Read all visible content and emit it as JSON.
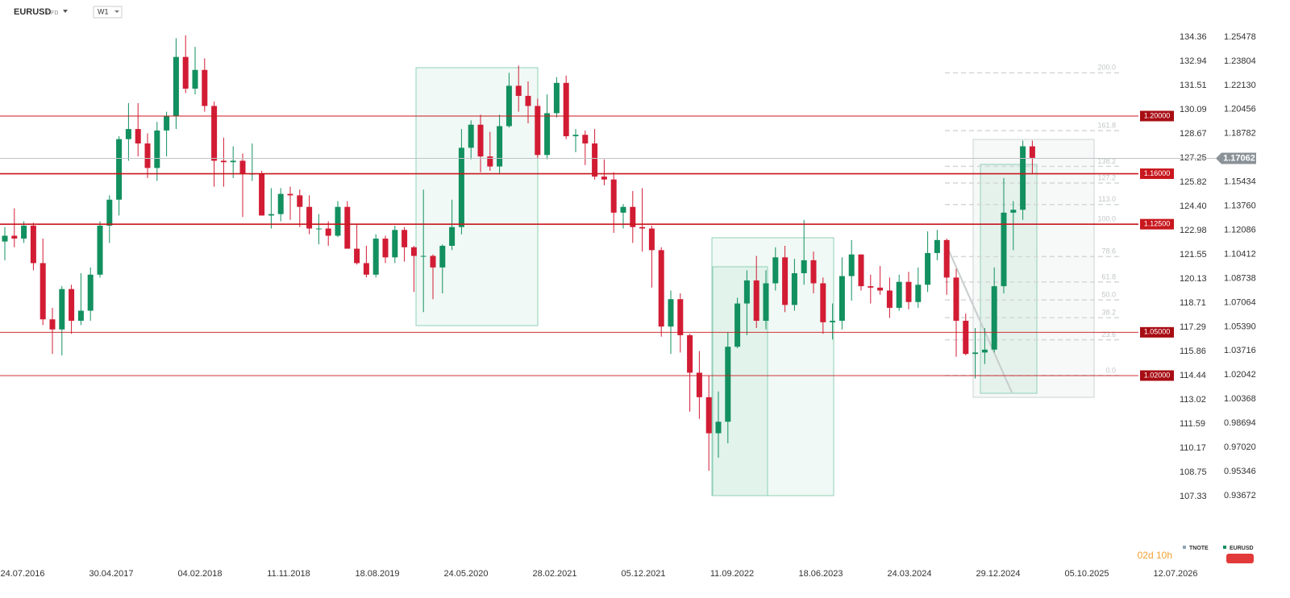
{
  "header": {
    "symbol": "EURUSD",
    "kind": "CFD",
    "interval": "W1"
  },
  "chart_data": {
    "type": "candlestick",
    "up_color": "#12905f",
    "down_color": "#d21c34",
    "level_color": "#c8171d",
    "level_label_color": "#a80d14",
    "current_color": "#8a9297",
    "ylim": [
      0.88921,
      1.28049
    ],
    "yticks": [
      1.25478,
      1.23804,
      {
        "value": 1.2213,
        "label": "1.22130"
      },
      1.20456,
      1.18782,
      1.15434,
      {
        "value": 1.1376,
        "label": "1.13760"
      },
      1.12086,
      1.10412,
      1.08738,
      1.07064,
      {
        "value": 1.0539,
        "label": "1.05390"
      },
      1.03716,
      1.02042,
      1.00368,
      0.98694,
      {
        "value": 0.9702,
        "label": "0.97020"
      },
      0.95346,
      0.93672
    ],
    "y2lim": [
      103.35,
      136.54
    ],
    "y2ticks": [
      134.36,
      132.94,
      131.51,
      130.09,
      128.67,
      127.25,
      125.82,
      {
        "value": 124.4,
        "label": "124.40"
      },
      122.98,
      121.55,
      120.13,
      118.71,
      117.29,
      115.86,
      114.44,
      113.02,
      111.59,
      110.17,
      108.75,
      107.33
    ],
    "x_labels": [
      "24.07.2016",
      "30.04.2017",
      "04.02.2018",
      "11.11.2018",
      "18.08.2019",
      "24.05.2020",
      "28.02.2021",
      "05.12.2021",
      "11.09.2022",
      "18.06.2023",
      "24.03.2024",
      "29.12.2024",
      "05.10.2025",
      "12.07.2026"
    ],
    "current_price": 1.17062,
    "levels": [
      {
        "value": 1.2,
        "label": "1.20000"
      },
      {
        "value": 1.16,
        "label": "1.16000"
      },
      {
        "value": 1.125,
        "label": "1.12500"
      },
      {
        "value": 1.05,
        "label": "1.05000"
      },
      {
        "value": 1.02,
        "label": "1.02000"
      }
    ],
    "fib_levels": [
      {
        "value": 200,
        "label": "200.0"
      },
      161.8,
      138.2,
      127.2,
      {
        "value": 113,
        "label": "113.0"
      },
      {
        "value": 100,
        "label": "100.0"
      },
      78.6,
      61.8,
      {
        "value": 50,
        "label": "50.0"
      },
      38.2,
      23.6,
      {
        "value": 0,
        "label": "0.0"
      }
    ],
    "legend": [
      {
        "name": "TNOTE",
        "color": "#8fa3b8"
      },
      {
        "name": "EURUSD",
        "color": "#12905f"
      }
    ],
    "timer": "02d 10h",
    "timer_color": "#f0a030",
    "candles": [
      [
        1.113,
        1.123,
        1.1,
        1.117
      ],
      [
        1.117,
        1.136,
        1.109,
        1.115
      ],
      [
        1.115,
        1.127,
        1.112,
        1.124
      ],
      [
        1.124,
        1.126,
        1.093,
        1.098
      ],
      [
        1.098,
        1.115,
        1.055,
        1.059
      ],
      [
        1.059,
        1.067,
        1.035,
        1.052
      ],
      [
        1.052,
        1.082,
        1.034,
        1.08
      ],
      [
        1.08,
        1.083,
        1.049,
        1.058
      ],
      [
        1.058,
        1.091,
        1.055,
        1.065
      ],
      [
        1.065,
        1.095,
        1.058,
        1.09
      ],
      [
        1.09,
        1.127,
        1.088,
        1.124
      ],
      [
        1.124,
        1.145,
        1.112,
        1.142
      ],
      [
        1.142,
        1.186,
        1.131,
        1.184
      ],
      [
        1.184,
        1.209,
        1.169,
        1.191
      ],
      [
        1.191,
        1.209,
        1.172,
        1.181
      ],
      [
        1.181,
        1.188,
        1.157,
        1.164
      ],
      [
        1.164,
        1.196,
        1.155,
        1.19
      ],
      [
        1.19,
        1.203,
        1.172,
        1.2
      ],
      [
        1.2,
        1.254,
        1.191,
        1.241
      ],
      [
        1.241,
        1.256,
        1.216,
        1.219
      ],
      [
        1.219,
        1.248,
        1.215,
        1.232
      ],
      [
        1.232,
        1.24,
        1.203,
        1.207
      ],
      [
        1.207,
        1.21,
        1.151,
        1.169
      ],
      [
        1.169,
        1.185,
        1.151,
        1.168
      ],
      [
        1.168,
        1.179,
        1.157,
        1.169
      ],
      [
        1.169,
        1.174,
        1.13,
        1.16
      ],
      [
        1.16,
        1.181,
        1.155,
        1.16
      ],
      [
        1.16,
        1.162,
        1.132,
        1.131
      ],
      [
        1.131,
        1.15,
        1.122,
        1.132
      ],
      [
        1.132,
        1.15,
        1.127,
        1.146
      ],
      [
        1.146,
        1.151,
        1.128,
        1.145
      ],
      [
        1.145,
        1.149,
        1.123,
        1.137
      ],
      [
        1.137,
        1.145,
        1.118,
        1.122
      ],
      [
        1.122,
        1.132,
        1.111,
        1.122
      ],
      [
        1.122,
        1.127,
        1.11,
        1.117
      ],
      [
        1.117,
        1.141,
        1.116,
        1.137
      ],
      [
        1.137,
        1.141,
        1.11,
        1.108
      ],
      [
        1.108,
        1.125,
        1.097,
        1.098
      ],
      [
        1.098,
        1.11,
        1.088,
        1.09
      ],
      [
        1.09,
        1.118,
        1.088,
        1.115
      ],
      [
        1.115,
        1.117,
        1.098,
        1.102
      ],
      [
        1.102,
        1.124,
        1.098,
        1.121
      ],
      [
        1.121,
        1.123,
        1.099,
        1.109
      ],
      [
        1.109,
        1.11,
        1.078,
        1.103
      ],
      [
        1.103,
        1.149,
        1.064,
        1.103
      ],
      [
        1.103,
        1.104,
        1.073,
        1.095
      ],
      [
        1.095,
        1.111,
        1.077,
        1.11
      ],
      [
        1.11,
        1.142,
        1.107,
        1.123
      ],
      [
        1.123,
        1.191,
        1.118,
        1.178
      ],
      [
        1.178,
        1.197,
        1.17,
        1.194
      ],
      [
        1.194,
        1.201,
        1.161,
        1.172
      ],
      [
        1.172,
        1.189,
        1.162,
        1.165
      ],
      [
        1.165,
        1.201,
        1.16,
        1.193
      ],
      [
        1.193,
        1.23,
        1.192,
        1.221
      ],
      [
        1.221,
        1.235,
        1.203,
        1.214
      ],
      [
        1.214,
        1.224,
        1.195,
        1.207
      ],
      [
        1.207,
        1.212,
        1.171,
        1.173
      ],
      [
        1.173,
        1.215,
        1.17,
        1.202
      ],
      [
        1.202,
        1.227,
        1.199,
        1.223
      ],
      [
        1.223,
        1.228,
        1.184,
        1.186
      ],
      [
        1.186,
        1.191,
        1.175,
        1.187
      ],
      [
        1.187,
        1.19,
        1.166,
        1.181
      ],
      [
        1.181,
        1.191,
        1.156,
        1.158
      ],
      [
        1.158,
        1.17,
        1.152,
        1.156
      ],
      [
        1.156,
        1.161,
        1.119,
        1.133
      ],
      [
        1.133,
        1.139,
        1.122,
        1.137
      ],
      [
        1.137,
        1.148,
        1.112,
        1.123
      ],
      [
        1.123,
        1.15,
        1.106,
        1.122
      ],
      [
        1.122,
        1.124,
        1.081,
        1.107
      ],
      [
        1.107,
        1.109,
        1.047,
        1.054
      ],
      [
        1.054,
        1.079,
        1.035,
        1.073
      ],
      [
        1.073,
        1.077,
        1.036,
        1.048
      ],
      [
        1.048,
        1.049,
        0.995,
        1.022
      ],
      [
        1.022,
        1.037,
        0.99,
        1.005
      ],
      [
        1.005,
        1.02,
        0.954,
        0.98
      ],
      [
        0.98,
        1.009,
        0.963,
        0.988
      ],
      [
        0.988,
        1.05,
        0.973,
        1.04
      ],
      [
        1.04,
        1.074,
        1.039,
        1.07
      ],
      [
        1.07,
        1.093,
        1.048,
        1.086
      ],
      [
        1.086,
        1.103,
        1.053,
        1.058
      ],
      [
        1.058,
        1.093,
        1.052,
        1.084
      ],
      [
        1.084,
        1.109,
        1.079,
        1.102
      ],
      [
        1.102,
        1.11,
        1.064,
        1.069
      ],
      [
        1.069,
        1.101,
        1.065,
        1.091
      ],
      [
        1.091,
        1.128,
        1.083,
        1.1
      ],
      [
        1.1,
        1.106,
        1.077,
        1.084
      ],
      [
        1.084,
        1.088,
        1.049,
        1.057
      ],
      [
        1.057,
        1.07,
        1.045,
        1.058
      ],
      [
        1.058,
        1.102,
        1.052,
        1.089
      ],
      [
        1.089,
        1.114,
        1.072,
        1.104
      ],
      [
        1.104,
        1.104,
        1.079,
        1.082
      ],
      [
        1.082,
        1.09,
        1.07,
        1.081
      ],
      [
        1.081,
        1.096,
        1.076,
        1.079
      ],
      [
        1.079,
        1.088,
        1.06,
        1.067
      ],
      [
        1.067,
        1.09,
        1.065,
        1.085
      ],
      [
        1.085,
        1.092,
        1.066,
        1.071
      ],
      [
        1.071,
        1.095,
        1.067,
        1.083
      ],
      [
        1.083,
        1.12,
        1.078,
        1.105
      ],
      [
        1.105,
        1.121,
        1.1,
        1.114
      ],
      [
        1.114,
        1.115,
        1.076,
        1.088
      ],
      [
        1.088,
        1.094,
        1.033,
        1.058
      ],
      [
        1.058,
        1.063,
        1.034,
        1.035
      ],
      [
        1.035,
        1.053,
        1.018,
        1.036
      ],
      [
        1.036,
        1.053,
        1.028,
        1.038
      ],
      [
        1.038,
        1.095,
        1.036,
        1.082
      ],
      [
        1.082,
        1.157,
        1.077,
        1.133
      ],
      [
        1.133,
        1.141,
        1.107,
        1.135
      ],
      [
        1.135,
        1.183,
        1.128,
        1.179
      ],
      [
        1.179,
        1.183,
        1.16,
        1.171
      ]
    ]
  }
}
